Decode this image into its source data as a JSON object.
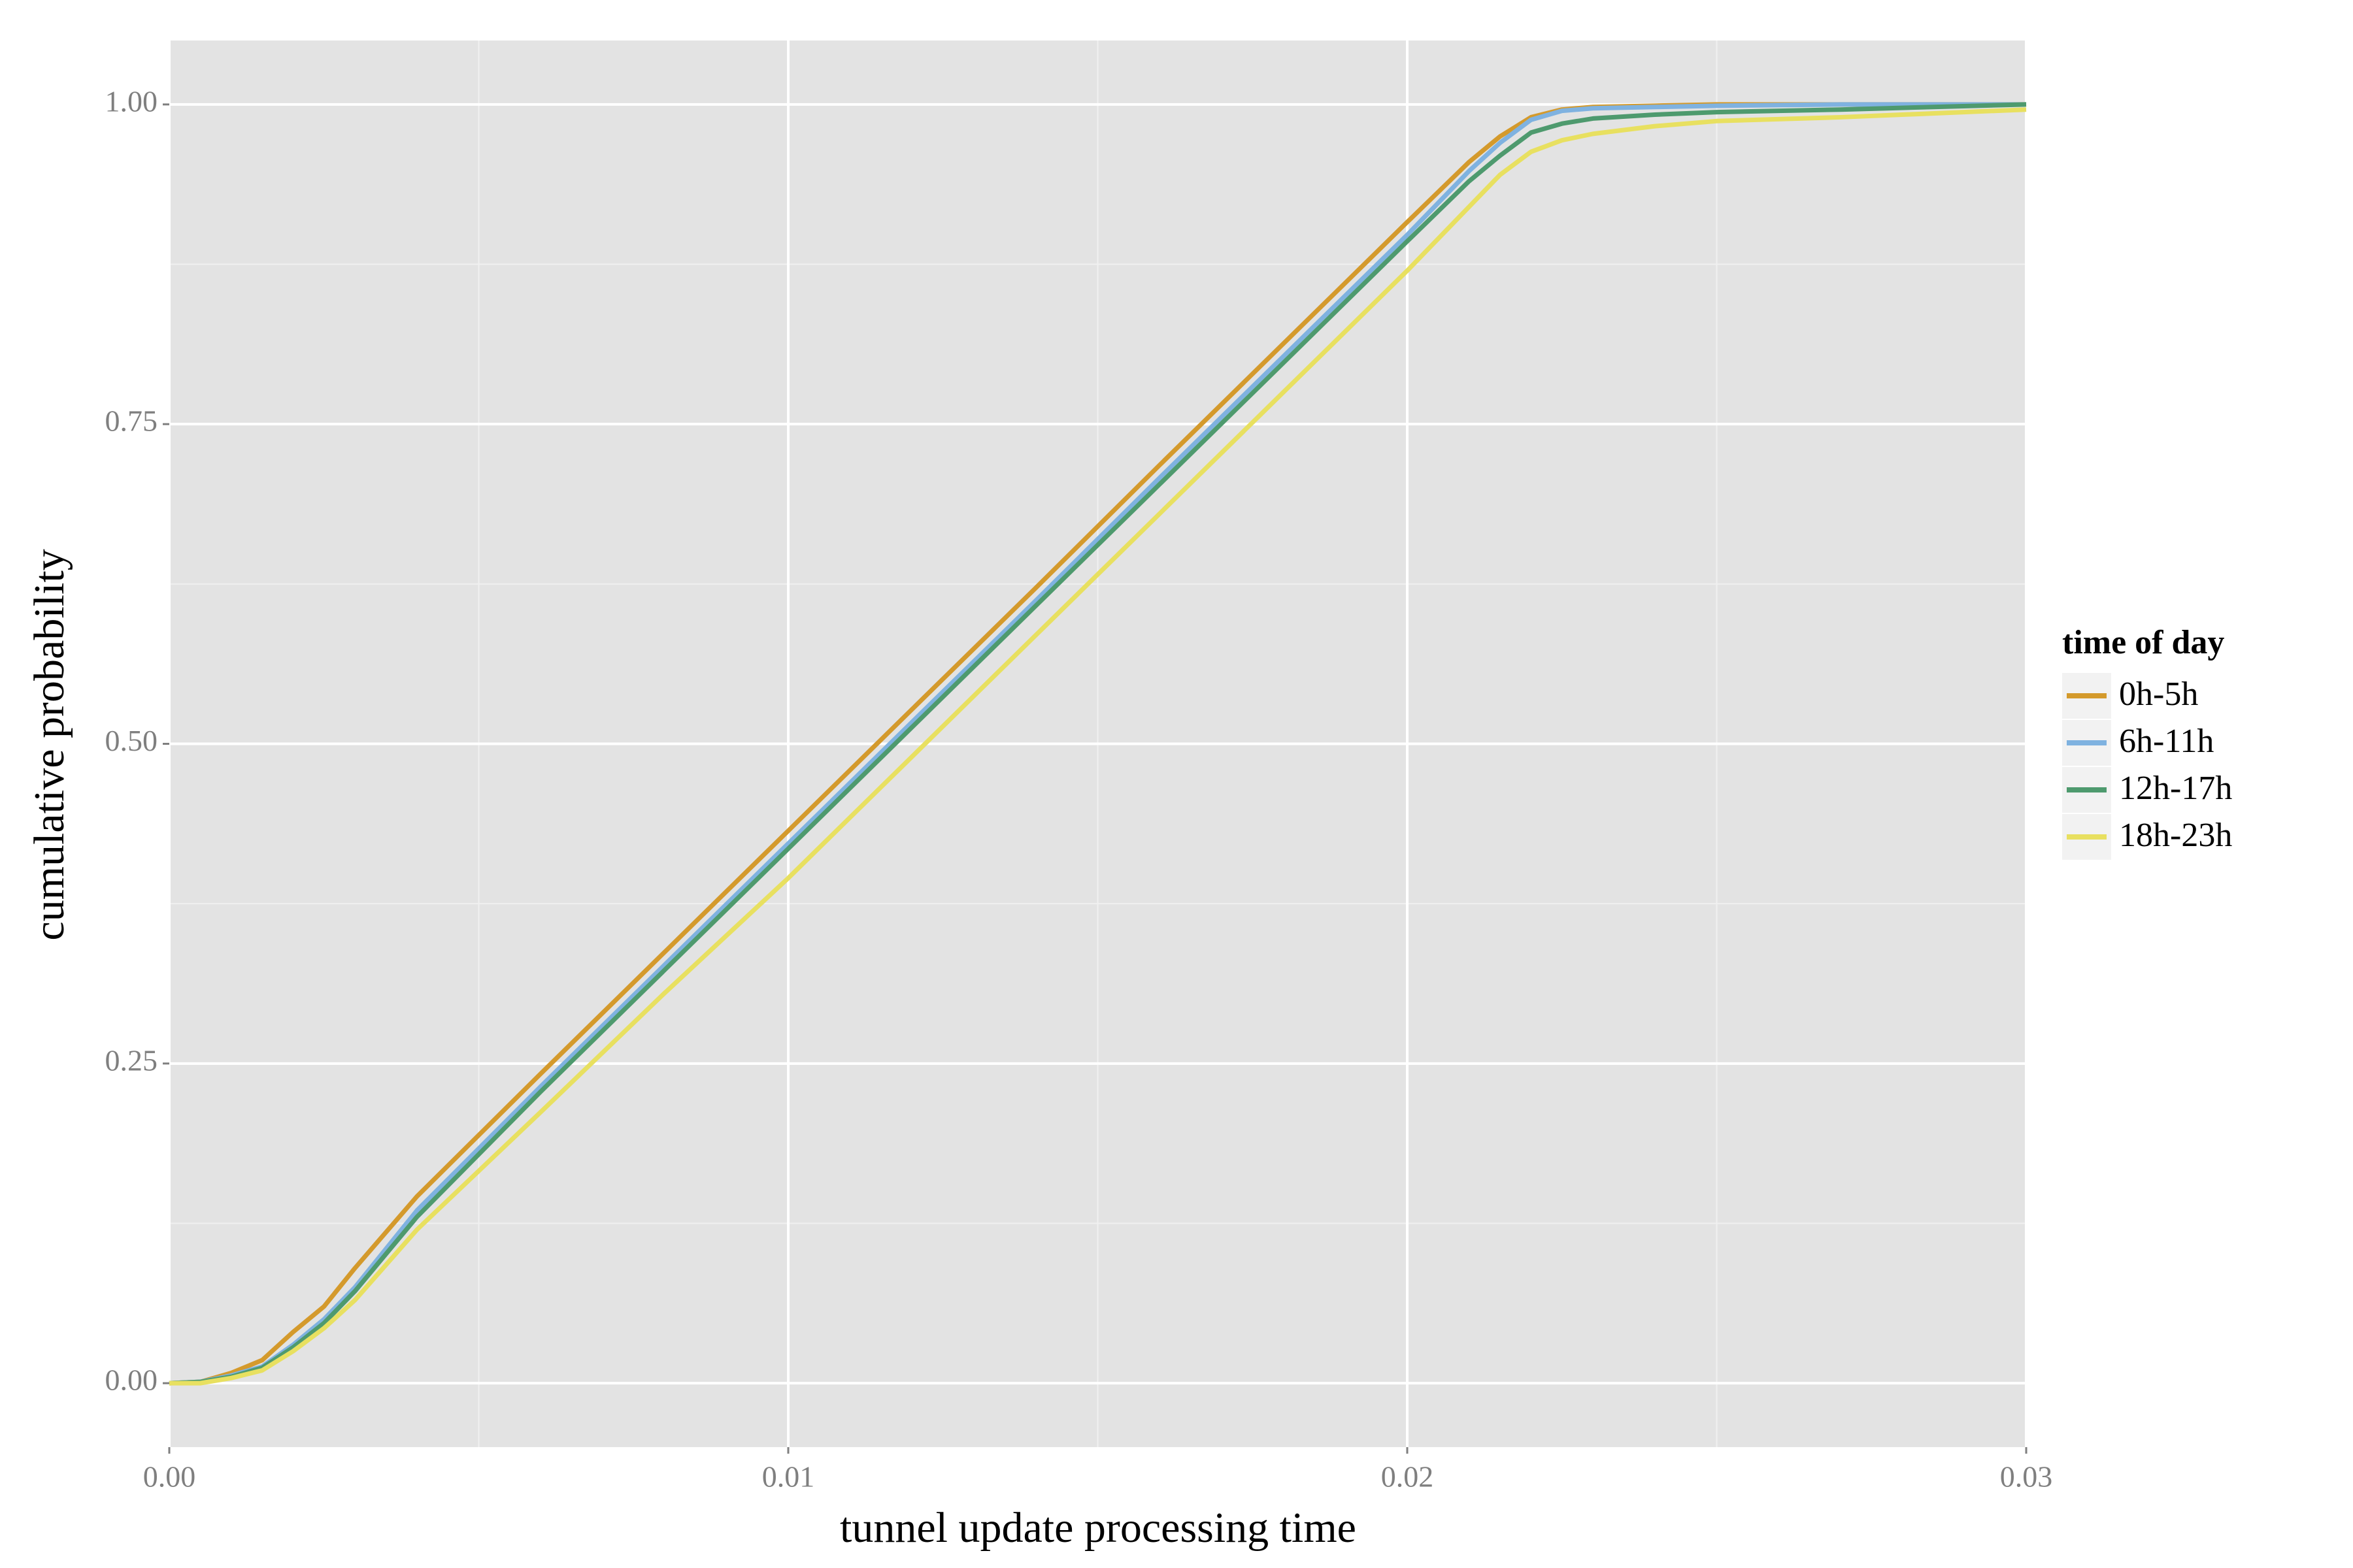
{
  "chart_data": {
    "type": "line",
    "xlabel": "tunnel update processing time",
    "ylabel": "cumulative probability",
    "legend_title": "time of day",
    "legend_position": "right",
    "grid": true,
    "x": [
      0,
      0.0005,
      0.001,
      0.0015,
      0.002,
      0.0025,
      0.003,
      0.004,
      0.006,
      0.008,
      0.01,
      0.012,
      0.014,
      0.016,
      0.018,
      0.02,
      0.021,
      0.0215,
      0.022,
      0.0225,
      0.023,
      0.024,
      0.025,
      0.027,
      0.03
    ],
    "xlim": [
      0,
      0.03
    ],
    "ylim": [
      -0.05,
      1.05
    ],
    "xticks": [
      {
        "value": 0,
        "label": "0.00"
      },
      {
        "value": 0.01,
        "label": "0.01"
      },
      {
        "value": 0.02,
        "label": "0.02"
      },
      {
        "value": 0.03,
        "label": "0.03"
      }
    ],
    "yticks": [
      {
        "value": 0,
        "label": "0.00"
      },
      {
        "value": 0.25,
        "label": "0.25"
      },
      {
        "value": 0.5,
        "label": "0.50"
      },
      {
        "value": 0.75,
        "label": "0.75"
      },
      {
        "value": 1,
        "label": "1.00"
      }
    ],
    "series": [
      {
        "name": "0h-5h",
        "color": "#d49a2c",
        "values": [
          0,
          0.001,
          0.008,
          0.018,
          0.04,
          0.06,
          0.09,
          0.146,
          0.242,
          0.337,
          0.432,
          0.527,
          0.622,
          0.718,
          0.813,
          0.908,
          0.955,
          0.975,
          0.99,
          0.996,
          0.998,
          0.999,
          1,
          1,
          1
        ]
      },
      {
        "name": "6h-11h",
        "color": "#7fb2e0",
        "values": [
          0,
          0.001,
          0.006,
          0.013,
          0.03,
          0.05,
          0.075,
          0.135,
          0.232,
          0.327,
          0.422,
          0.517,
          0.612,
          0.708,
          0.803,
          0.898,
          0.948,
          0.97,
          0.988,
          0.995,
          0.997,
          0.998,
          0.999,
          1,
          1
        ]
      },
      {
        "name": "12h-17h",
        "color": "#4e9a6e",
        "values": [
          0,
          0.001,
          0.005,
          0.012,
          0.028,
          0.047,
          0.072,
          0.13,
          0.228,
          0.323,
          0.418,
          0.513,
          0.608,
          0.703,
          0.798,
          0.893,
          0.94,
          0.96,
          0.978,
          0.985,
          0.989,
          0.992,
          0.994,
          0.996,
          1
        ]
      },
      {
        "name": "18h-23h",
        "color": "#e8e060",
        "values": [
          0,
          0,
          0.004,
          0.01,
          0.025,
          0.043,
          0.065,
          0.12,
          0.212,
          0.305,
          0.395,
          0.49,
          0.585,
          0.68,
          0.775,
          0.87,
          0.92,
          0.945,
          0.963,
          0.972,
          0.977,
          0.983,
          0.987,
          0.99,
          0.996
        ]
      }
    ]
  }
}
